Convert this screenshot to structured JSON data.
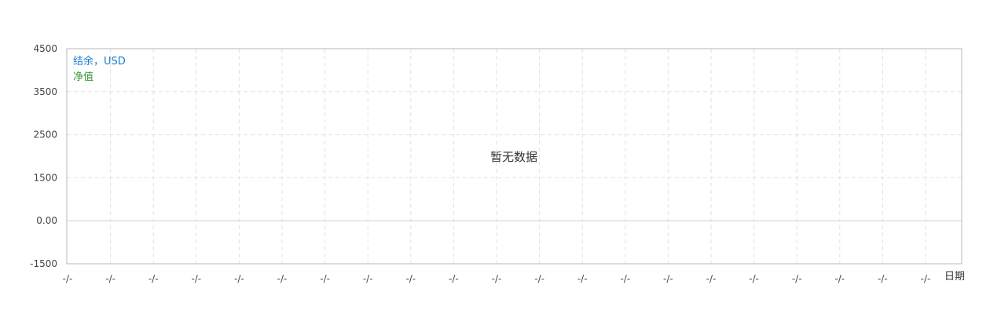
{
  "chart_data": {
    "type": "line",
    "title": "",
    "xlabel": "日期",
    "ylabel": "",
    "yticks": [
      "4500",
      "3500",
      "2500",
      "1500",
      "0.00",
      "-1500"
    ],
    "xticks": [
      "-/-",
      "-/-",
      "-/-",
      "-/-",
      "-/-",
      "-/-",
      "-/-",
      "-/-",
      "-/-",
      "-/-",
      "-/-",
      "-/-",
      "-/-",
      "-/-",
      "-/-",
      "-/-",
      "-/-",
      "-/-",
      "-/-",
      "-/-",
      "-/-"
    ],
    "series": [
      {
        "name": "结余，USD",
        "values": []
      },
      {
        "name": "净值",
        "values": []
      }
    ],
    "empty_message": "暂无数据",
    "grid": true,
    "legend_position": "top-left",
    "colors": {
      "balance": "#1a7fd4",
      "equity": "#3a9a3a",
      "grid": "#e2e2e2",
      "axis": "#b8b8b8",
      "zero_line": "#cfcfcf",
      "text": "#333333",
      "tick_text": "#444444"
    }
  }
}
